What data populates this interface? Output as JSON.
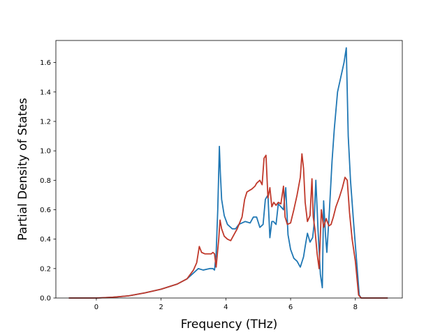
{
  "chart_data": {
    "type": "line",
    "title": "",
    "xlabel": "Frequency (THz)",
    "ylabel": "Partial Density of States",
    "xlim": [
      -1.25,
      9.45
    ],
    "ylim": [
      0.0,
      1.75
    ],
    "xticks": [
      0,
      2,
      4,
      6,
      8
    ],
    "yticks": [
      0.0,
      0.2,
      0.4,
      0.6,
      0.8,
      1.0,
      1.2,
      1.4,
      1.6
    ],
    "xtick_labels": [
      "0",
      "2",
      "4",
      "6",
      "8"
    ],
    "ytick_labels": [
      "0.0",
      "0.2",
      "0.4",
      "0.6",
      "0.8",
      "1.0",
      "1.2",
      "1.4",
      "1.6"
    ],
    "grid": false,
    "legend": null,
    "series": [
      {
        "color": "#1f77b4",
        "x": [
          -0.85,
          0.0,
          0.5,
          1.0,
          1.5,
          2.0,
          2.5,
          2.8,
          3.0,
          3.15,
          3.3,
          3.5,
          3.6,
          3.65,
          3.7,
          3.75,
          3.8,
          3.83,
          3.87,
          3.95,
          4.05,
          4.2,
          4.3,
          4.4,
          4.5,
          4.6,
          4.75,
          4.85,
          4.95,
          5.05,
          5.15,
          5.22,
          5.3,
          5.36,
          5.42,
          5.47,
          5.55,
          5.62,
          5.7,
          5.78,
          5.85,
          5.92,
          6.0,
          6.1,
          6.2,
          6.3,
          6.4,
          6.45,
          6.52,
          6.6,
          6.68,
          6.72,
          6.78,
          6.85,
          6.92,
          6.98,
          7.02,
          7.08,
          7.12,
          7.2,
          7.28,
          7.35,
          7.45,
          7.55,
          7.65,
          7.72,
          7.78,
          7.85,
          7.95,
          8.05,
          8.12,
          8.18,
          8.3,
          8.6,
          9.0
        ],
        "y": [
          0.0,
          0.0,
          0.005,
          0.015,
          0.035,
          0.06,
          0.095,
          0.13,
          0.17,
          0.2,
          0.19,
          0.2,
          0.2,
          0.19,
          0.3,
          0.6,
          1.03,
          0.85,
          0.67,
          0.56,
          0.5,
          0.47,
          0.47,
          0.5,
          0.51,
          0.52,
          0.51,
          0.55,
          0.55,
          0.48,
          0.5,
          0.67,
          0.7,
          0.41,
          0.52,
          0.52,
          0.5,
          0.64,
          0.62,
          0.6,
          0.75,
          0.43,
          0.33,
          0.27,
          0.25,
          0.21,
          0.28,
          0.35,
          0.44,
          0.38,
          0.41,
          0.49,
          0.8,
          0.45,
          0.16,
          0.07,
          0.66,
          0.42,
          0.31,
          0.6,
          0.93,
          1.15,
          1.4,
          1.5,
          1.6,
          1.7,
          1.1,
          0.8,
          0.5,
          0.22,
          0.02,
          0.0,
          0.0,
          0.0,
          0.0
        ]
      },
      {
        "color": "#c0392b",
        "x": [
          -0.85,
          0.0,
          0.5,
          1.0,
          1.5,
          2.0,
          2.5,
          2.8,
          3.0,
          3.1,
          3.18,
          3.25,
          3.35,
          3.45,
          3.55,
          3.6,
          3.65,
          3.7,
          3.78,
          3.82,
          3.87,
          3.95,
          4.05,
          4.15,
          4.25,
          4.35,
          4.5,
          4.58,
          4.65,
          4.72,
          4.8,
          4.9,
          4.95,
          5.05,
          5.12,
          5.18,
          5.24,
          5.3,
          5.36,
          5.42,
          5.48,
          5.55,
          5.62,
          5.7,
          5.78,
          5.83,
          5.9,
          6.0,
          6.1,
          6.2,
          6.3,
          6.35,
          6.4,
          6.45,
          6.52,
          6.6,
          6.66,
          6.7,
          6.75,
          6.82,
          6.88,
          6.95,
          7.02,
          7.1,
          7.18,
          7.25,
          7.32,
          7.4,
          7.5,
          7.6,
          7.68,
          7.75,
          7.82,
          7.9,
          8.0,
          8.1,
          8.18,
          8.3,
          8.6,
          9.0
        ],
        "y": [
          0.0,
          0.0,
          0.005,
          0.015,
          0.035,
          0.06,
          0.095,
          0.13,
          0.19,
          0.24,
          0.35,
          0.31,
          0.3,
          0.3,
          0.3,
          0.31,
          0.3,
          0.21,
          0.4,
          0.53,
          0.47,
          0.42,
          0.4,
          0.39,
          0.43,
          0.47,
          0.55,
          0.67,
          0.72,
          0.73,
          0.74,
          0.76,
          0.78,
          0.8,
          0.77,
          0.95,
          0.97,
          0.68,
          0.75,
          0.62,
          0.65,
          0.63,
          0.65,
          0.64,
          0.76,
          0.55,
          0.5,
          0.51,
          0.6,
          0.7,
          0.82,
          0.98,
          0.88,
          0.65,
          0.52,
          0.56,
          0.81,
          0.55,
          0.47,
          0.3,
          0.2,
          0.6,
          0.48,
          0.54,
          0.49,
          0.5,
          0.55,
          0.62,
          0.68,
          0.75,
          0.82,
          0.8,
          0.58,
          0.4,
          0.25,
          0.02,
          0.0,
          0.0,
          0.0,
          0.0
        ]
      }
    ]
  }
}
